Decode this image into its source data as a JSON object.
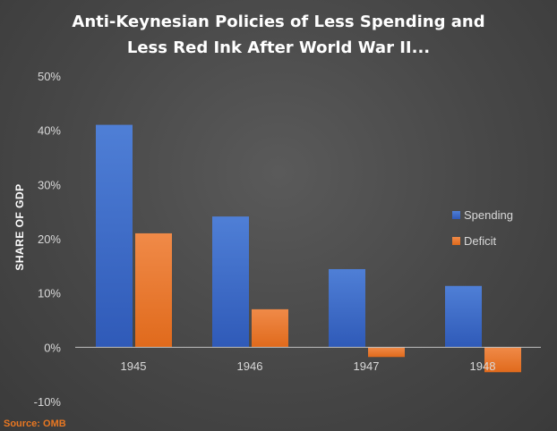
{
  "chart_data": {
    "type": "bar",
    "title_lines": [
      "Anti-Keynesian Policies of Less Spending and",
      "Less Red Ink After World War II..."
    ],
    "ylabel": "SHARE OF GDP",
    "xlabel": "",
    "categories": [
      "1945",
      "1946",
      "1947",
      "1948"
    ],
    "series": [
      {
        "name": "Spending",
        "values": [
          41.0,
          24.1,
          14.4,
          11.3
        ]
      },
      {
        "name": "Deficit",
        "values": [
          21.0,
          7.0,
          -1.8,
          -4.6
        ]
      }
    ],
    "ylim": [
      -10,
      50
    ],
    "yticks": [
      -10,
      0,
      10,
      20,
      30,
      40,
      50
    ],
    "ytick_labels": [
      "-10%",
      "0%",
      "10%",
      "20%",
      "30%",
      "40%",
      "50%"
    ],
    "grid": false,
    "legend_position": "right"
  },
  "colors": {
    "spending": "#4472c4",
    "deficit": "#ed7d31",
    "axis": "#bfbfbf",
    "source": "#e87722"
  },
  "source_note": "Source: OMB"
}
